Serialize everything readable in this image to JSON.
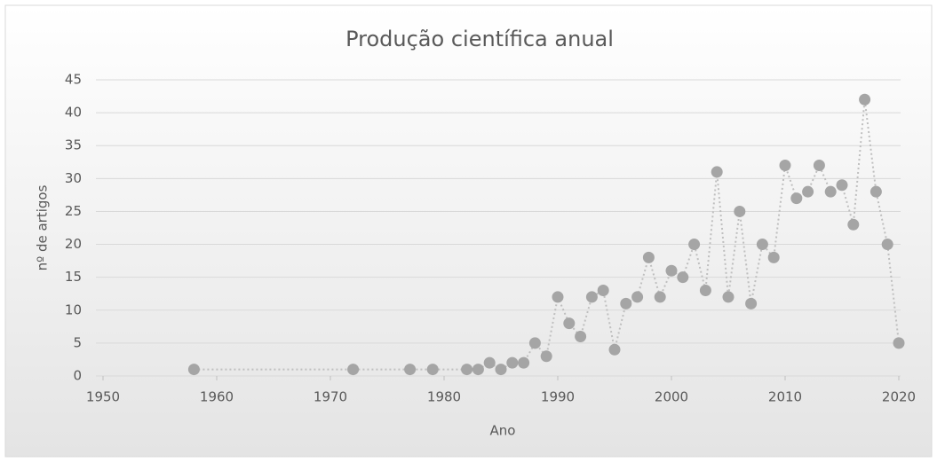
{
  "chart_data": {
    "type": "scatter",
    "title": "Produção científica anual",
    "x_label": "Ano",
    "y_label": "nº de artigos",
    "x": [
      1958,
      1972,
      1977,
      1979,
      1982,
      1983,
      1984,
      1985,
      1986,
      1987,
      1988,
      1989,
      1990,
      1991,
      1992,
      1993,
      1994,
      1995,
      1996,
      1997,
      1998,
      1999,
      2000,
      2001,
      2002,
      2003,
      2004,
      2005,
      2006,
      2007,
      2008,
      2009,
      2010,
      2011,
      2012,
      2013,
      2014,
      2015,
      2016,
      2017,
      2018,
      2019,
      2020
    ],
    "values": [
      1,
      1,
      1,
      1,
      1,
      1,
      2,
      1,
      2,
      2,
      5,
      3,
      12,
      8,
      6,
      12,
      13,
      4,
      11,
      12,
      18,
      12,
      16,
      15,
      20,
      13,
      31,
      12,
      25,
      11,
      20,
      18,
      32,
      27,
      28,
      32,
      28,
      29,
      23,
      42,
      28,
      20,
      5
    ],
    "color": "#a5a5a5",
    "xlim": [
      1950,
      2020
    ],
    "xticks": [
      1950,
      1960,
      1970,
      1980,
      1990,
      2000,
      2010,
      2020
    ],
    "ylim": [
      0,
      45
    ],
    "yticks": [
      0,
      5,
      10,
      15,
      20,
      25,
      30,
      35,
      40,
      45
    ],
    "grid": true
  }
}
